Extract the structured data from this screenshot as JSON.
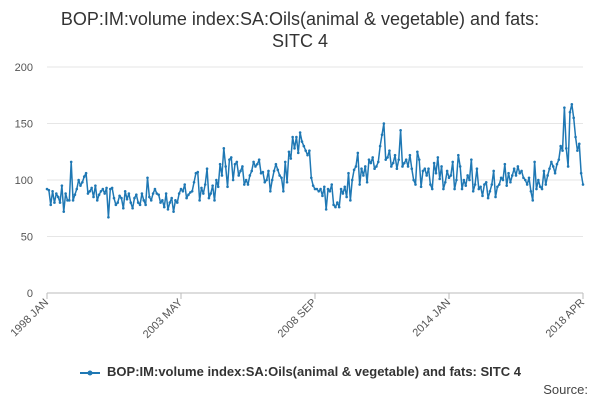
{
  "chart_data": {
    "type": "line",
    "title_lines": [
      "BOP:IM:volume index:SA:Oils(animal & vegetable) and fats:",
      "SITC 4"
    ],
    "xlabel": "",
    "ylabel": "",
    "ylim": [
      0,
      200
    ],
    "yticks": [
      "0",
      "50",
      "100",
      "150",
      "200"
    ],
    "x_range": [
      "1998 JAN",
      "2018 APR"
    ],
    "xticks": [
      "1998 JAN",
      "2003 MAY",
      "2008 SEP",
      "2014 JAN",
      "2018 APR"
    ],
    "grid": true,
    "legend_position": "bottom",
    "color": "#1f78b4",
    "series": [
      {
        "name": "BOP:IM:volume index:SA:Oils(animal & vegetable) and fats: SITC 4",
        "values": [
          92,
          91,
          78,
          90,
          80,
          88,
          85,
          80,
          95,
          72,
          88,
          82,
          82,
          116,
          82,
          87,
          92,
          100,
          95,
          98,
          103,
          106,
          88,
          90,
          93,
          85,
          95,
          82,
          87,
          90,
          92,
          88,
          93,
          67,
          92,
          93,
          84,
          78,
          80,
          86,
          84,
          75,
          90,
          83,
          88,
          80,
          75,
          84,
          87,
          80,
          78,
          88,
          82,
          78,
          102,
          85,
          82,
          88,
          92,
          88,
          87,
          80,
          82,
          76,
          88,
          74,
          80,
          84,
          72,
          82,
          80,
          88,
          92,
          90,
          96,
          84,
          87,
          89,
          90,
          98,
          106,
          107,
          82,
          93,
          88,
          96,
          110,
          84,
          88,
          95,
          82,
          100,
          94,
          114,
          104,
          128,
          112,
          94,
          118,
          120,
          100,
          114,
          116,
          104,
          108,
          112,
          96,
          100,
          96,
          104,
          108,
          116,
          112,
          114,
          118,
          106,
          107,
          98,
          100,
          108,
          90,
          100,
          108,
          114,
          109,
          104,
          102,
          90,
          116,
          98,
          125,
          119,
          138,
          128,
          138,
          124,
          142,
          134,
          130,
          126,
          122,
          126,
          102,
          95,
          92,
          92,
          90,
          92,
          86,
          94,
          74,
          92,
          90,
          96,
          78,
          76,
          80,
          76,
          92,
          88,
          94,
          85,
          106,
          82,
          100,
          109,
          112,
          124,
          96,
          110,
          104,
          112,
          98,
          118,
          115,
          120,
          110,
          112,
          116,
          130,
          140,
          150,
          118,
          120,
          126,
          112,
          115,
          122,
          110,
          118,
          144,
          112,
          115,
          118,
          112,
          122,
          110,
          100,
          96,
          125,
          118,
          94,
          108,
          110,
          104,
          110,
          96,
          92,
          115,
          106,
          120,
          101,
          112,
          92,
          98,
          108,
          102,
          104,
          116,
          92,
          100,
          122,
          112,
          92,
          100,
          95,
          104,
          100,
          118,
          90,
          96,
          110,
          92,
          94,
          86,
          96,
          98,
          84,
          90,
          96,
          108,
          85,
          94,
          96,
          102,
          100,
          114,
          95,
          106,
          98,
          104,
          110,
          104,
          112,
          106,
          108,
          102,
          100,
          96,
          102,
          90,
          82,
          116,
          92,
          100,
          94,
          92,
          108,
          96,
          104,
          110,
          116,
          112,
          106,
          114,
          118,
          130,
          126,
          164,
          128,
          112,
          160,
          167,
          155,
          138,
          126,
          132,
          106,
          96
        ]
      }
    ],
    "source_label": "Source:"
  }
}
